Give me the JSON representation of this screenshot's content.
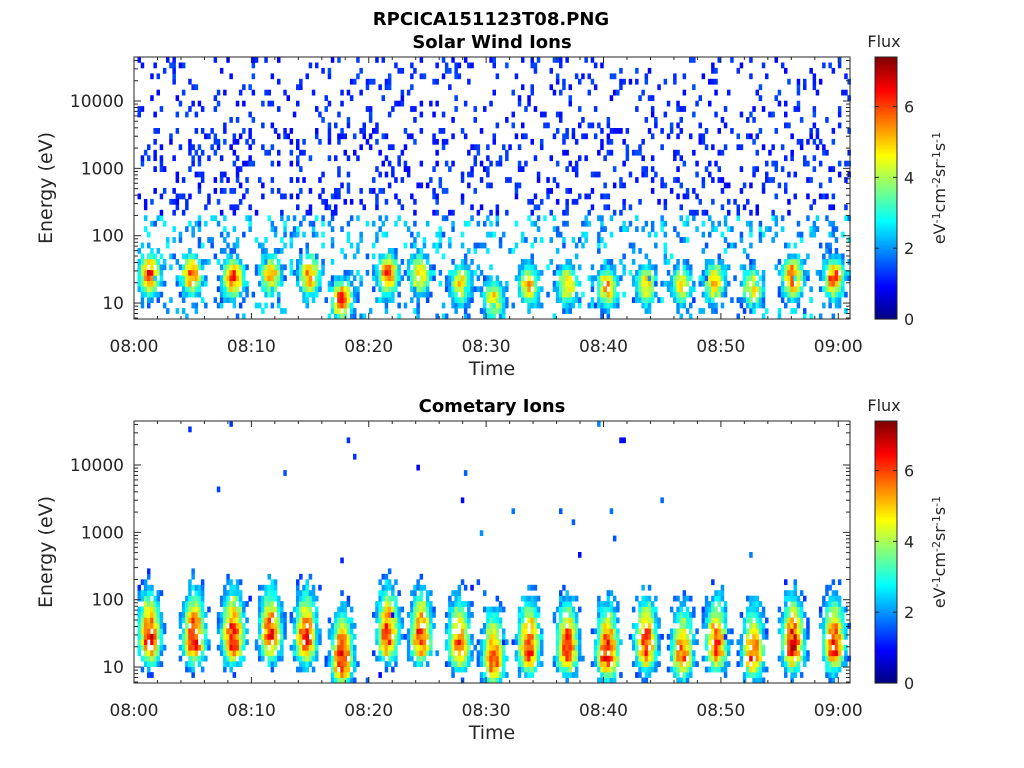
{
  "figure_title": "RPCICA151123T08.PNG",
  "chart_data": [
    {
      "type": "heatmap",
      "title": "Solar Wind Ions",
      "xlabel": "Time",
      "ylabel": "Energy (eV)",
      "x_ticks": [
        "08:00",
        "08:10",
        "08:20",
        "08:30",
        "08:40",
        "08:50",
        "09:00"
      ],
      "x_range_minutes": [
        0,
        61
      ],
      "y_scale": "log",
      "y_ticks": [
        {
          "value": 10,
          "label": "10"
        },
        {
          "value": 100,
          "label": "100"
        },
        {
          "value": 1000,
          "label": "1000"
        },
        {
          "value": 10000,
          "label": "10000"
        }
      ],
      "y_range": [
        5.8,
        45000
      ],
      "colorbar": {
        "title": "Flux",
        "label_parts": [
          "eV",
          "-1",
          "cm",
          "-2",
          "sr",
          "-1",
          "s",
          "-1"
        ],
        "range": [
          0,
          7.4
        ],
        "ticks": [
          0,
          2,
          4,
          6
        ],
        "colormap": "jet"
      },
      "bursts": [
        {
          "t": 1.2,
          "e": 28,
          "v": 6.6
        },
        {
          "t": 4.8,
          "e": 28,
          "v": 6.2
        },
        {
          "t": 8.3,
          "e": 25,
          "v": 6.4
        },
        {
          "t": 11.5,
          "e": 28,
          "v": 5.8
        },
        {
          "t": 14.8,
          "e": 28,
          "v": 6.0
        },
        {
          "t": 17.6,
          "e": 12,
          "v": 6.5
        },
        {
          "t": 21.5,
          "e": 28,
          "v": 6.3
        },
        {
          "t": 24.2,
          "e": 28,
          "v": 5.5
        },
        {
          "t": 27.7,
          "e": 20,
          "v": 5.3
        },
        {
          "t": 30.5,
          "e": 12,
          "v": 5.2
        },
        {
          "t": 33.5,
          "e": 20,
          "v": 5.4
        },
        {
          "t": 36.8,
          "e": 20,
          "v": 5.4
        },
        {
          "t": 40.2,
          "e": 18,
          "v": 5.6
        },
        {
          "t": 43.5,
          "e": 20,
          "v": 5.5
        },
        {
          "t": 46.5,
          "e": 20,
          "v": 5.2
        },
        {
          "t": 49.3,
          "e": 22,
          "v": 5.6
        },
        {
          "t": 52.6,
          "e": 18,
          "v": 5.3
        },
        {
          "t": 56.0,
          "e": 25,
          "v": 6.5
        },
        {
          "t": 59.5,
          "e": 25,
          "v": 6.3
        }
      ],
      "background": "sparse"
    },
    {
      "type": "heatmap",
      "title": "Cometary Ions",
      "xlabel": "Time",
      "ylabel": "Energy (eV)",
      "x_ticks": [
        "08:00",
        "08:10",
        "08:20",
        "08:30",
        "08:40",
        "08:50",
        "09:00"
      ],
      "x_range_minutes": [
        0,
        61
      ],
      "y_scale": "log",
      "y_ticks": [
        {
          "value": 10,
          "label": "10"
        },
        {
          "value": 100,
          "label": "100"
        },
        {
          "value": 1000,
          "label": "1000"
        },
        {
          "value": 10000,
          "label": "10000"
        }
      ],
      "y_range": [
        5.8,
        45000
      ],
      "colorbar": {
        "title": "Flux",
        "label_parts": [
          "eV",
          "-1",
          "cm",
          "-2",
          "sr",
          "-1",
          "s",
          "-1"
        ],
        "range": [
          0,
          7.4
        ],
        "ticks": [
          0,
          2,
          4,
          6
        ],
        "colormap": "jet"
      },
      "bursts": [
        {
          "t": 1.2,
          "e": 25,
          "v": 7.0
        },
        {
          "t": 5.0,
          "e": 25,
          "v": 7.0
        },
        {
          "t": 8.3,
          "e": 25,
          "v": 7.0
        },
        {
          "t": 11.5,
          "e": 28,
          "v": 6.6
        },
        {
          "t": 14.5,
          "e": 25,
          "v": 6.7
        },
        {
          "t": 17.6,
          "e": 12,
          "v": 7.0
        },
        {
          "t": 21.5,
          "e": 28,
          "v": 6.7
        },
        {
          "t": 24.3,
          "e": 25,
          "v": 6.5
        },
        {
          "t": 27.6,
          "e": 20,
          "v": 6.4
        },
        {
          "t": 30.5,
          "e": 12,
          "v": 6.6
        },
        {
          "t": 33.5,
          "e": 18,
          "v": 6.8
        },
        {
          "t": 36.8,
          "e": 18,
          "v": 6.7
        },
        {
          "t": 40.2,
          "e": 15,
          "v": 7.0
        },
        {
          "t": 43.5,
          "e": 20,
          "v": 6.6
        },
        {
          "t": 46.6,
          "e": 15,
          "v": 6.3
        },
        {
          "t": 49.5,
          "e": 20,
          "v": 6.6
        },
        {
          "t": 52.6,
          "e": 15,
          "v": 6.4
        },
        {
          "t": 56.0,
          "e": 20,
          "v": 7.0
        },
        {
          "t": 59.5,
          "e": 20,
          "v": 6.9
        }
      ],
      "background": "clean"
    }
  ]
}
